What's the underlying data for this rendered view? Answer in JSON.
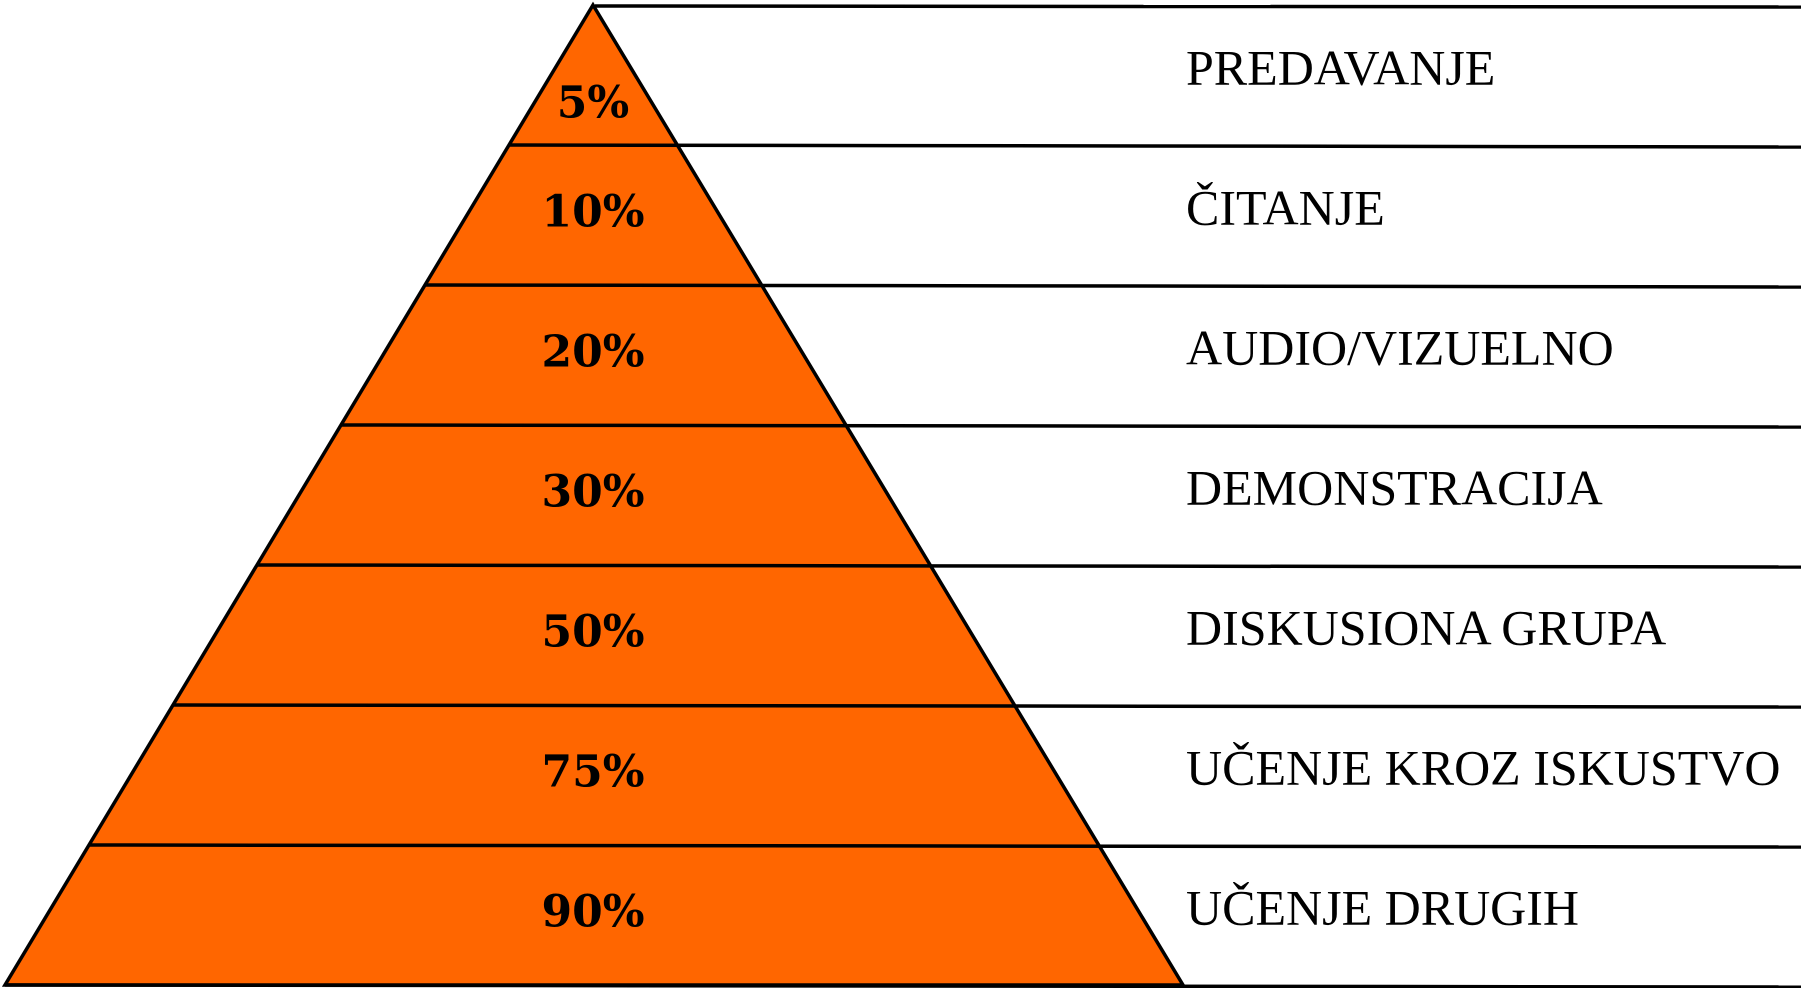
{
  "pyramid": {
    "fill_color": "#FF6600",
    "line_color": "#000000",
    "levels": [
      {
        "percent": "5%",
        "label": "PREDAVANJE"
      },
      {
        "percent": "10%",
        "label": "ČITANJE"
      },
      {
        "percent": "20%",
        "label": "AUDIO/VIZUELNO"
      },
      {
        "percent": "30%",
        "label": "DEMONSTRACIJA"
      },
      {
        "percent": "50%",
        "label": "DISKUSIONA GRUPA"
      },
      {
        "percent": "75%",
        "label": "UČENJE KROZ ISKUSTVO"
      },
      {
        "percent": "90%",
        "label": "UČENJE DRUGIH"
      }
    ]
  }
}
